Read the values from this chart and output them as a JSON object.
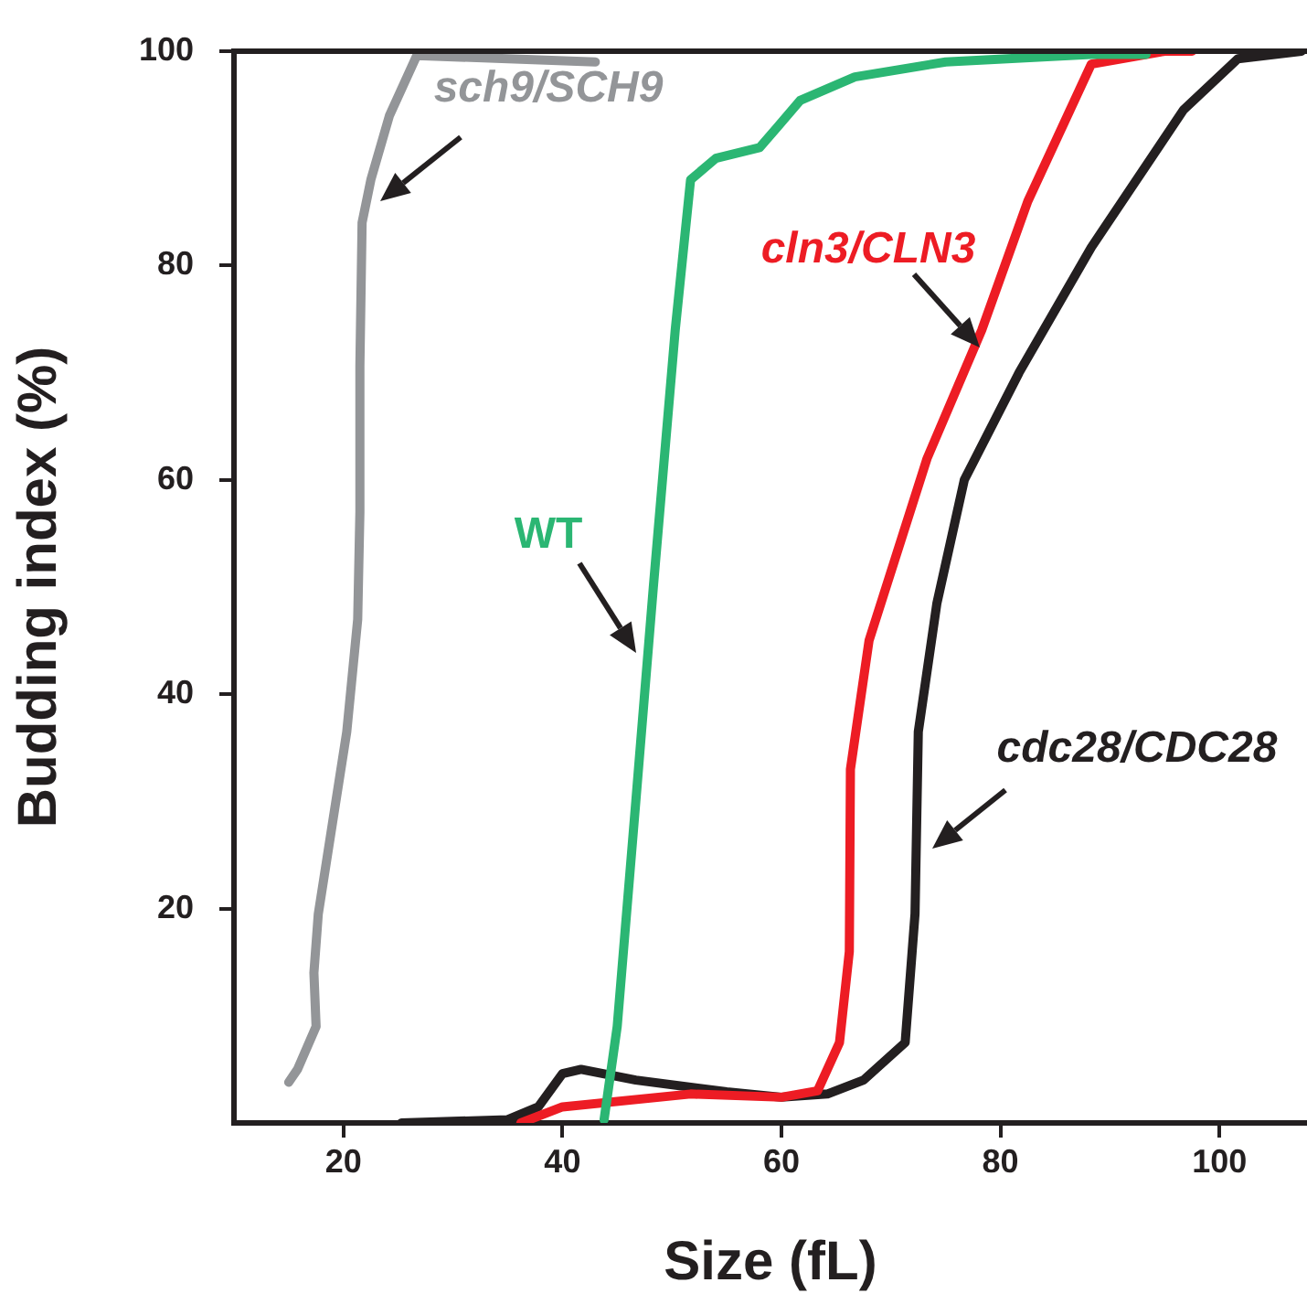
{
  "chart_data": {
    "type": "line",
    "xlabel": "Size (fL)",
    "ylabel": "Budding index (%)",
    "xlim": [
      10,
      108
    ],
    "xticks": [
      20,
      40,
      60,
      80,
      100
    ],
    "ylim": [
      0,
      100
    ],
    "yticks": [
      20,
      40,
      60,
      80,
      100
    ],
    "grid": false,
    "legend": false,
    "marker": "none",
    "line_style": "solid",
    "series": [
      {
        "name": "sch9/SCH9",
        "color": "#939598",
        "x": [
          15,
          15.8,
          17.5,
          17.3,
          17.7,
          19,
          20.3,
          21.3,
          21.5,
          21.5,
          21.7,
          22.5,
          24.2,
          26.7,
          43
        ],
        "values": [
          3.8,
          5,
          9,
          14,
          19.5,
          28,
          36.5,
          47,
          57,
          70.6,
          84,
          88,
          94,
          99.6,
          99
        ]
      },
      {
        "name": "WT",
        "color": "#2bb673",
        "x": [
          43.8,
          45,
          46.7,
          48.3,
          50.3,
          51.7,
          54,
          58,
          59.7,
          61.7,
          66.7,
          75,
          88.3,
          93.3
        ],
        "values": [
          0.3,
          9,
          30,
          50,
          74,
          88,
          90,
          91,
          93,
          95.4,
          97.6,
          99,
          99.7,
          99.7
        ]
      },
      {
        "name": "cln3/CLN3",
        "color": "#ed1c24",
        "x": [
          36.2,
          40,
          51.7,
          60,
          63.3,
          65.3,
          66.2,
          66.3,
          68,
          73.3,
          78.3,
          82.5,
          88.3,
          95,
          97.5
        ],
        "values": [
          0,
          1.5,
          2.7,
          2.4,
          3,
          7.5,
          16,
          33,
          45,
          62,
          74,
          86,
          98.8,
          100,
          100
        ]
      },
      {
        "name": "cdc28/CDC28",
        "color": "#231f20",
        "x": [
          25.3,
          35,
          37.8,
          40,
          41.7,
          46.7,
          55,
          60,
          64.2,
          67.5,
          71.3,
          72.2,
          72.5,
          74.2,
          76.7,
          81.7,
          88.3,
          96.7,
          101.7,
          107.5
        ],
        "values": [
          0,
          0.3,
          1.5,
          4.6,
          5,
          4,
          2.9,
          2.4,
          2.7,
          4,
          7.5,
          19.5,
          36.5,
          48.5,
          60,
          70,
          81.7,
          94.5,
          99.3,
          100
        ]
      }
    ]
  }
}
